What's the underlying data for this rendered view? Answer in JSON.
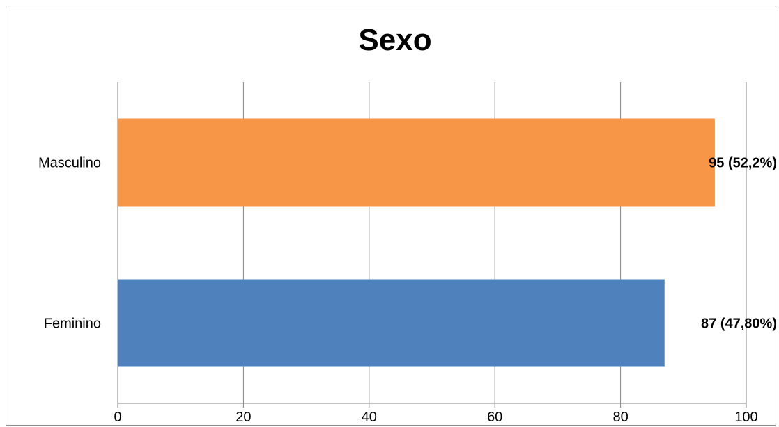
{
  "chart_data": {
    "type": "bar",
    "orientation": "horizontal",
    "title": "Sexo",
    "xlabel": "",
    "ylabel": "",
    "categories": [
      "Masculino",
      "Feminino"
    ],
    "values": [
      95,
      87
    ],
    "data_labels": [
      "95 (52,2%)",
      "87 (47,80%)"
    ],
    "bar_colors": [
      "#f79646",
      "#4f81bd"
    ],
    "xlim": [
      0,
      100
    ],
    "x_ticks": [
      "0",
      "20",
      "40",
      "60",
      "80",
      "100"
    ],
    "grid": true,
    "legend": "none"
  }
}
